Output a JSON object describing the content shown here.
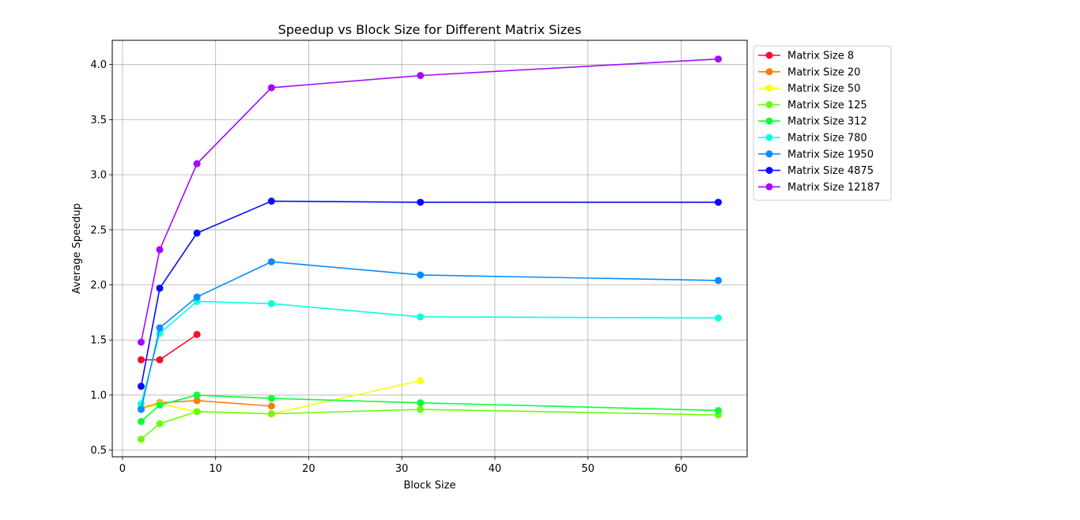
{
  "chart_data": {
    "type": "line",
    "title": "Speedup vs Block Size for Different Matrix Sizes",
    "xlabel": "Block Size",
    "ylabel": "Average Speedup",
    "xlim": [
      -1.1,
      67.1
    ],
    "ylim": [
      0.44,
      4.22
    ],
    "xticks": [
      0,
      10,
      20,
      30,
      40,
      50,
      60
    ],
    "yticks": [
      0.5,
      1.0,
      1.5,
      2.0,
      2.5,
      3.0,
      3.5,
      4.0
    ],
    "grid": true,
    "legend_position": "outside upper right",
    "series": [
      {
        "name": "Matrix Size 8",
        "color": "#ff0a2b",
        "x": [
          2,
          4,
          8
        ],
        "y": [
          1.32,
          1.32,
          1.55
        ]
      },
      {
        "name": "Matrix Size 20",
        "color": "#ff7a0a",
        "x": [
          2,
          4,
          8,
          16
        ],
        "y": [
          0.88,
          0.93,
          0.95,
          0.9
        ]
      },
      {
        "name": "Matrix Size 50",
        "color": "#faff0a",
        "x": [
          2,
          4,
          8,
          16,
          32
        ],
        "y": [
          0.87,
          0.92,
          0.85,
          0.83,
          1.13
        ]
      },
      {
        "name": "Matrix Size 125",
        "color": "#6aff0a",
        "x": [
          2,
          4,
          8,
          16,
          32,
          64
        ],
        "y": [
          0.6,
          0.74,
          0.85,
          0.83,
          0.87,
          0.82
        ]
      },
      {
        "name": "Matrix Size 312",
        "color": "#0aff3a",
        "x": [
          2,
          4,
          8,
          16,
          32,
          64
        ],
        "y": [
          0.76,
          0.91,
          1.0,
          0.97,
          0.93,
          0.86
        ]
      },
      {
        "name": "Matrix Size 780",
        "color": "#0affe0",
        "x": [
          2,
          4,
          8,
          16,
          32,
          64
        ],
        "y": [
          0.92,
          1.56,
          1.85,
          1.83,
          1.71,
          1.7
        ]
      },
      {
        "name": "Matrix Size 1950",
        "color": "#0a8cff",
        "x": [
          2,
          4,
          8,
          16,
          32,
          64
        ],
        "y": [
          0.87,
          1.61,
          1.89,
          2.21,
          2.09,
          2.04
        ]
      },
      {
        "name": "Matrix Size 4875",
        "color": "#0a0aff",
        "x": [
          2,
          4,
          8,
          16,
          32,
          64
        ],
        "y": [
          1.08,
          1.97,
          2.47,
          2.76,
          2.75,
          2.75
        ]
      },
      {
        "name": "Matrix Size 12187",
        "color": "#a30aff",
        "x": [
          2,
          4,
          8,
          16,
          32,
          64
        ],
        "y": [
          1.48,
          2.32,
          3.1,
          3.79,
          3.9,
          4.05
        ]
      }
    ]
  }
}
